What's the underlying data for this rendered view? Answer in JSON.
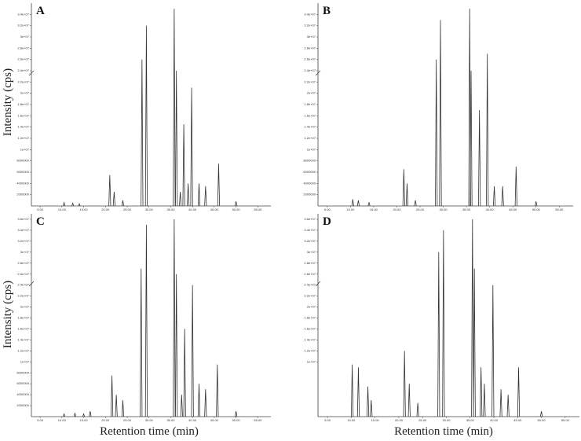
{
  "chart_data": [
    {
      "type": "chromatogram",
      "title": "A",
      "ylabel": "Intensity (cps)",
      "xlabel": "Retention time (min)",
      "color": "#333333",
      "x": [
        10.5,
        12.5,
        14,
        21,
        22,
        24,
        28.4,
        29.4,
        35.8,
        36.3,
        37.2,
        38,
        39,
        39.8,
        41.5,
        43,
        46,
        50
      ],
      "values": [
        600000,
        500000,
        400000,
        5500000,
        2500000,
        1000000,
        26000000,
        32000000,
        35000000,
        24000000,
        2500000,
        14500000,
        4000000,
        21000000,
        4000000,
        3500000,
        7500000,
        800000
      ],
      "xlim": [
        3,
        58
      ],
      "ylim": [
        0,
        36000000
      ],
      "xticks": [
        {
          "value": 5,
          "label": "5.00"
        },
        {
          "value": 10,
          "label": "10.00"
        },
        {
          "value": 15,
          "label": "15.00"
        },
        {
          "value": 20,
          "label": "20.00"
        },
        {
          "value": 25,
          "label": "25.00"
        },
        {
          "value": 30,
          "label": "30.00"
        },
        {
          "value": 35,
          "label": "35.00"
        },
        {
          "value": 40,
          "label": "40.00"
        },
        {
          "value": 45,
          "label": "45.00"
        },
        {
          "value": 50,
          "label": "50.00"
        },
        {
          "value": 55,
          "label": "55.00"
        }
      ],
      "yticks": [
        2000000,
        4000000,
        6000000,
        8000000,
        {
          "value": 10000000,
          "label": "1e+07"
        },
        {
          "value": 12000000,
          "label": "1.2e+07"
        },
        {
          "value": 14000000,
          "label": "1.4e+07"
        },
        {
          "value": 16000000,
          "label": "1.6e+07"
        },
        {
          "value": 18000000,
          "label": "1.8e+07"
        },
        {
          "value": 20000000,
          "label": "2e+07"
        },
        {
          "value": 22000000,
          "label": "2.2e+07"
        },
        {
          "value": 24000000,
          "label": "2.4e+07"
        },
        {
          "value": 26000000,
          "label": "2.6e+07"
        },
        {
          "value": 28000000,
          "label": "2.8e+07"
        },
        {
          "value": 30000000,
          "label": "3e+07"
        },
        {
          "value": 32000000,
          "label": "3.2e+07"
        },
        {
          "value": 34000000,
          "label": "3.4e+07"
        }
      ]
    },
    {
      "type": "chromatogram",
      "title": "B",
      "color": "#333333",
      "x": [
        10.5,
        11.7,
        14,
        21.5,
        22.2,
        24,
        28.5,
        29.4,
        35.7,
        36,
        37.8,
        39.5,
        41,
        42.8,
        45.7,
        50
      ],
      "values": [
        1200000,
        1000000,
        600000,
        6500000,
        4000000,
        1000000,
        26000000,
        33000000,
        35000000,
        24000000,
        17000000,
        27000000,
        3500000,
        3500000,
        7000000,
        800000
      ],
      "xlim": [
        3,
        58
      ],
      "ylim": [
        0,
        36000000
      ],
      "xticks": [
        {
          "value": 5,
          "label": "5.00"
        },
        {
          "value": 10,
          "label": "10.00"
        },
        {
          "value": 15,
          "label": "15.00"
        },
        {
          "value": 20,
          "label": "20.00"
        },
        {
          "value": 25,
          "label": "25.00"
        },
        {
          "value": 30,
          "label": "30.00"
        },
        {
          "value": 35,
          "label": "35.00"
        },
        {
          "value": 40,
          "label": "40.00"
        },
        {
          "value": 45,
          "label": "45.00"
        },
        {
          "value": 50,
          "label": "50.00"
        },
        {
          "value": 55,
          "label": "55.00"
        }
      ],
      "yticks": [
        2000000,
        4000000,
        6000000,
        8000000,
        {
          "value": 10000000,
          "label": "1e+07"
        },
        {
          "value": 12000000,
          "label": "1.2e+07"
        },
        {
          "value": 14000000,
          "label": "1.4e+07"
        },
        {
          "value": 16000000,
          "label": "1.6e+07"
        },
        {
          "value": 18000000,
          "label": "1.8e+07"
        },
        {
          "value": 20000000,
          "label": "2e+07"
        },
        {
          "value": 22000000,
          "label": "2.2e+07"
        },
        {
          "value": 24000000,
          "label": "2.4e+07"
        },
        {
          "value": 26000000,
          "label": "2.6e+07"
        },
        {
          "value": 28000000,
          "label": "2.8e+07"
        },
        {
          "value": 30000000,
          "label": "3e+07"
        },
        {
          "value": 32000000,
          "label": "3.2e+07"
        },
        {
          "value": 34000000,
          "label": "3.4e+07"
        }
      ]
    },
    {
      "type": "chromatogram",
      "title": "C",
      "color": "#333333",
      "x": [
        10.5,
        13,
        15,
        16.5,
        21.5,
        22.5,
        24,
        28.2,
        29.4,
        35.8,
        36.3,
        37.5,
        38.2,
        40,
        41.5,
        43,
        45.7,
        50
      ],
      "values": [
        500000,
        600000,
        500000,
        1000000,
        7500000,
        4000000,
        3000000,
        27000000,
        35000000,
        36000000,
        26000000,
        4000000,
        16000000,
        24000000,
        6000000,
        5000000,
        9500000,
        1000000
      ],
      "xlim": [
        3,
        58
      ],
      "ylim": [
        0,
        37000000
      ],
      "xticks": [
        {
          "value": 5,
          "label": "5.00"
        },
        {
          "value": 10,
          "label": "10.00"
        },
        {
          "value": 15,
          "label": "15.00"
        },
        {
          "value": 20,
          "label": "20.00"
        },
        {
          "value": 25,
          "label": "25.00"
        },
        {
          "value": 30,
          "label": "30.00"
        },
        {
          "value": 35,
          "label": "35.00"
        },
        {
          "value": 40,
          "label": "40.00"
        },
        {
          "value": 45,
          "label": "45.00"
        },
        {
          "value": 50,
          "label": "50.00"
        },
        {
          "value": 55,
          "label": "55.00"
        }
      ],
      "yticks": [
        2000000,
        4000000,
        6000000,
        8000000,
        {
          "value": 10000000,
          "label": "1e+07"
        },
        {
          "value": 12000000,
          "label": "1.2e+07"
        },
        {
          "value": 14000000,
          "label": "1.4e+07"
        },
        {
          "value": 16000000,
          "label": "1.6e+07"
        },
        {
          "value": 18000000,
          "label": "1.8e+07"
        },
        {
          "value": 20000000,
          "label": "2e+07"
        },
        {
          "value": 22000000,
          "label": "2.2e+07"
        },
        {
          "value": 24000000,
          "label": "2.4e+07"
        },
        {
          "value": 26000000,
          "label": "2.6e+07"
        },
        {
          "value": 28000000,
          "label": "2.8e+07"
        },
        {
          "value": 30000000,
          "label": "3e+07"
        },
        {
          "value": 32000000,
          "label": "3.2e+07"
        },
        {
          "value": 34000000,
          "label": "3.4e+07"
        },
        {
          "value": 36000000,
          "label": "3.6e+07"
        }
      ]
    },
    {
      "type": "chromatogram",
      "title": "D",
      "color": "#333333",
      "x": [
        10.2,
        11.5,
        13.5,
        14.2,
        21.2,
        22.2,
        24,
        28.4,
        29.4,
        35.5,
        35.9,
        37.3,
        38,
        39.8,
        41.5,
        43,
        45.2,
        50
      ],
      "values": [
        9500000,
        9000000,
        5500000,
        3000000,
        12000000,
        6000000,
        2500000,
        30000000,
        34000000,
        36000000,
        27000000,
        9000000,
        6000000,
        24000000,
        5000000,
        4000000,
        9000000,
        1000000
      ],
      "xlim": [
        3,
        58
      ],
      "ylim": [
        0,
        37000000
      ],
      "xticks": [
        {
          "value": 5,
          "label": "5.00"
        },
        {
          "value": 10,
          "label": "10.00"
        },
        {
          "value": 15,
          "label": "15.00"
        },
        {
          "value": 20,
          "label": "20.00"
        },
        {
          "value": 25,
          "label": "25.00"
        },
        {
          "value": 30,
          "label": "30.00"
        },
        {
          "value": 35,
          "label": "35.00"
        },
        {
          "value": 40,
          "label": "40.00"
        },
        {
          "value": 45,
          "label": "45.00"
        },
        {
          "value": 50,
          "label": "50.00"
        },
        {
          "value": 55,
          "label": "55.00"
        }
      ],
      "yticks": [
        {
          "value": 10000000,
          "label": "1e+07"
        },
        {
          "value": 12000000,
          "label": "1.2e+07"
        },
        {
          "value": 14000000,
          "label": "1.4e+07"
        },
        {
          "value": 16000000,
          "label": "1.6e+07"
        },
        {
          "value": 18000000,
          "label": "1.8e+07"
        },
        {
          "value": 20000000,
          "label": "2e+07"
        },
        {
          "value": 22000000,
          "label": "2.2e+07"
        },
        {
          "value": 24000000,
          "label": "2.4e+07"
        },
        {
          "value": 26000000,
          "label": "2.6e+07"
        },
        {
          "value": 28000000,
          "label": "2.8e+07"
        },
        {
          "value": 30000000,
          "label": "3e+07"
        },
        {
          "value": 32000000,
          "label": "3.2e+07"
        },
        {
          "value": 34000000,
          "label": "3.4e+07"
        },
        {
          "value": 36000000,
          "label": "3.6e+07"
        }
      ]
    }
  ]
}
